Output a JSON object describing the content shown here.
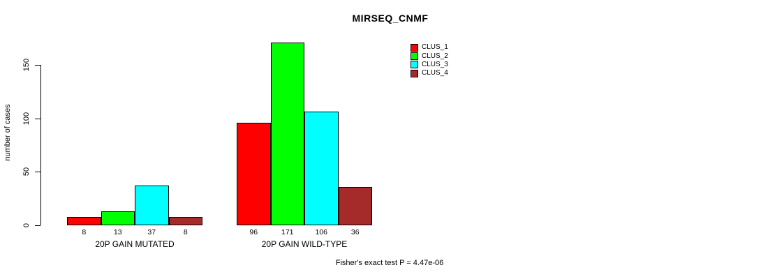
{
  "chart_data": {
    "type": "bar",
    "title": "MIRSEQ_CNMF",
    "categories": [
      "20P GAIN MUTATED",
      "20P GAIN WILD-TYPE"
    ],
    "series": [
      {
        "name": "CLUS_1",
        "color": "#FF0000",
        "values": [
          8,
          96
        ]
      },
      {
        "name": "CLUS_2",
        "color": "#00FF00",
        "values": [
          13,
          171
        ]
      },
      {
        "name": "CLUS_3",
        "color": "#00FFFF",
        "values": [
          37,
          106
        ]
      },
      {
        "name": "CLUS_4",
        "color": "#A52A2A",
        "values": [
          8,
          36
        ]
      }
    ],
    "xlabel": "",
    "ylabel": "number of cases",
    "ylim": [
      0,
      150
    ],
    "y_ticks": [
      0,
      50,
      100,
      150
    ],
    "grid": false,
    "bar_value_labels_shown": true,
    "legend_position": "top-right",
    "legend_entries": [
      "CLUS_1",
      "CLUS_2",
      "CLUS_3",
      "CLUS_4"
    ],
    "annotation": "Fisher's exact test P = 4.47e-06"
  }
}
